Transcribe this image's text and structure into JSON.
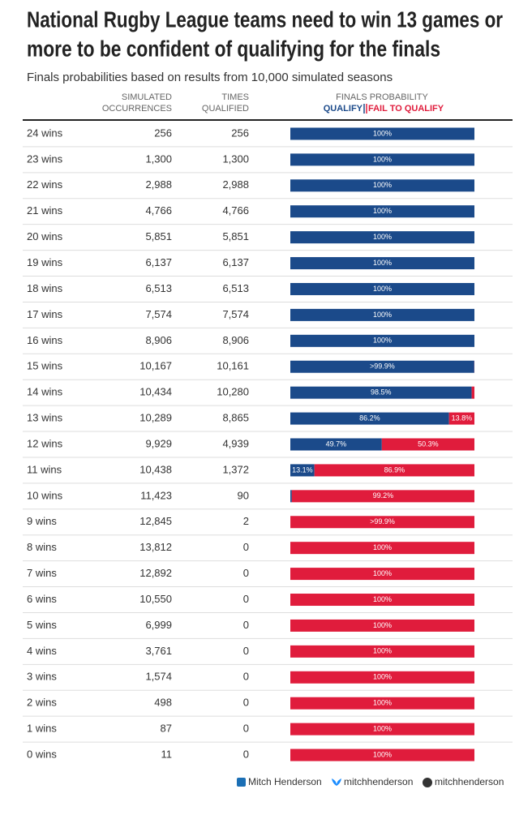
{
  "chart_data": {
    "type": "bar",
    "title": [
      "National Rugby League teams need to win 13 games or",
      "more to be confident of qualifying for the finals"
    ],
    "subtitle": "Finals probabilities based on results from 10,000 simulated seasons",
    "columns": [
      [
        "SIMULATED",
        "OCCURRENCES"
      ],
      [
        "TIMES",
        "QUALIFIED"
      ],
      [
        "FINALS PROBABILITY"
      ]
    ],
    "categories": [
      "24 wins",
      "23 wins",
      "22 wins",
      "21 wins",
      "20 wins",
      "19 wins",
      "18 wins",
      "17 wins",
      "16 wins",
      "15 wins",
      "14 wins",
      "13 wins",
      "12 wins",
      "11 wins",
      "10 wins",
      "9 wins",
      "8 wins",
      "7 wins",
      "6 wins",
      "5 wins",
      "4 wins",
      "3 wins",
      "2 wins",
      "1 wins",
      "0 wins"
    ],
    "occurrences": [
      "256",
      "1,300",
      "2,988",
      "4,766",
      "5,851",
      "6,137",
      "6,513",
      "7,574",
      "8,906",
      "10,167",
      "10,434",
      "10,289",
      "9,929",
      "10,438",
      "11,423",
      "12,845",
      "13,812",
      "12,892",
      "10,550",
      "6,999",
      "3,761",
      "1,574",
      "498",
      "87",
      "11"
    ],
    "qualified": [
      "256",
      "1,300",
      "2,988",
      "4,766",
      "5,851",
      "6,137",
      "6,513",
      "7,574",
      "8,906",
      "10,161",
      "10,280",
      "8,865",
      "4,939",
      "1,372",
      "90",
      "2",
      "0",
      "0",
      "0",
      "0",
      "0",
      "0",
      "0",
      "0",
      "0"
    ],
    "xlim": [
      0,
      100
    ],
    "series": [
      {
        "name": "QUALIFY",
        "color": "#1b4a8a",
        "values": [
          100,
          100,
          100,
          100,
          100,
          100,
          100,
          100,
          100,
          99.94,
          98.5,
          86.2,
          49.7,
          13.1,
          0.8,
          0.02,
          0,
          0,
          0,
          0,
          0,
          0,
          0,
          0,
          0
        ],
        "value_labels": [
          "100%",
          "100%",
          "100%",
          "100%",
          "100%",
          "100%",
          "100%",
          "100%",
          "100%",
          ">99.9%",
          "98.5%",
          "86.2%",
          "49.7%",
          "13.1%",
          null,
          null,
          null,
          null,
          null,
          null,
          null,
          null,
          null,
          null,
          null
        ]
      },
      {
        "name": "FAIL TO QUALIFY",
        "color": "#e01c3c",
        "values": [
          0,
          0,
          0,
          0,
          0,
          0,
          0,
          0,
          0,
          0.06,
          1.5,
          13.8,
          50.3,
          86.9,
          99.2,
          99.98,
          100,
          100,
          100,
          100,
          100,
          100,
          100,
          100,
          100
        ],
        "value_labels": [
          null,
          null,
          null,
          null,
          null,
          null,
          null,
          null,
          null,
          null,
          null,
          "13.8%",
          "50.3%",
          "86.9%",
          "99.2%",
          ">99.9%",
          "100%",
          "100%",
          "100%",
          "100%",
          "100%",
          "100%",
          "100%",
          "100%",
          "100%"
        ]
      }
    ]
  },
  "footer": {
    "author": "Mitch Henderson",
    "bluesky": "mitchhenderson",
    "github": "mitchhenderson"
  }
}
